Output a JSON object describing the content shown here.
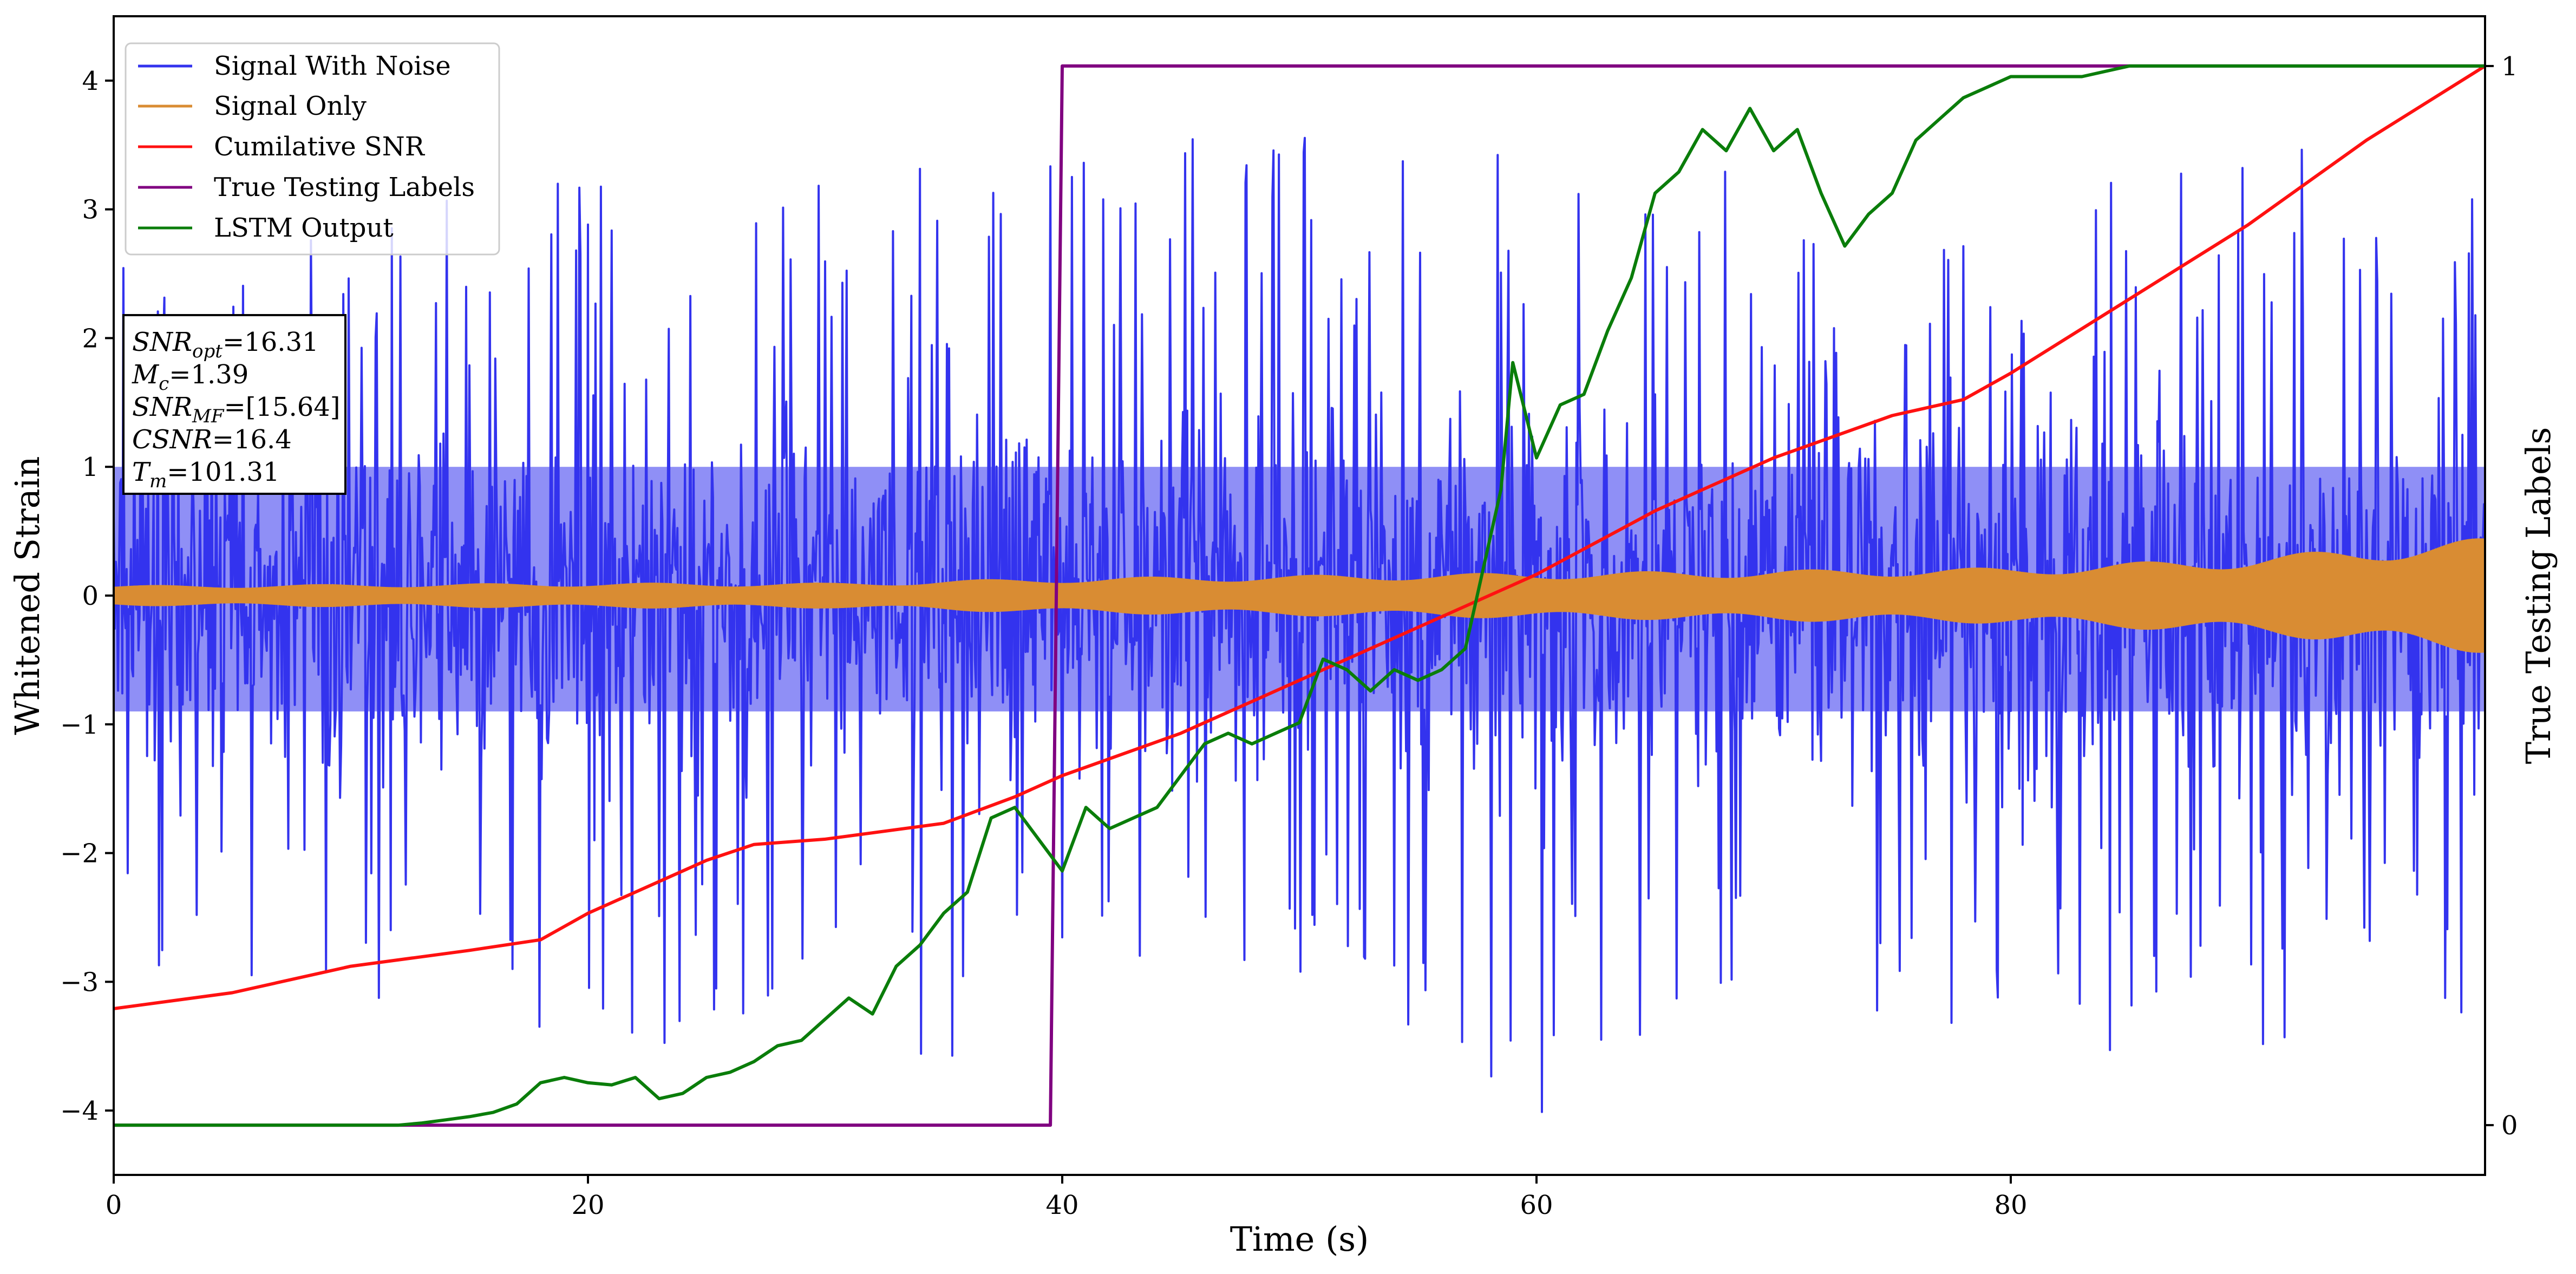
{
  "chart_data": {
    "type": "line",
    "title": "",
    "xlabel": "Time (s)",
    "ylabel": "Whitened Strain",
    "y2label": "True Testing Labels",
    "xlim": [
      0,
      100
    ],
    "ylim": [
      -4.5,
      4.5
    ],
    "y2lim": [
      -0.047,
      1.047
    ],
    "xticks": [
      0,
      20,
      40,
      60,
      80
    ],
    "yticks": [
      -4,
      -3,
      -2,
      -1,
      0,
      1,
      2,
      3,
      4
    ],
    "y2ticks": [
      0,
      1
    ],
    "legend_position": "top-left",
    "grid": false,
    "colors": {
      "signal_with_noise": "#3333ee",
      "signal_only": "#d98c33",
      "cumulative_snr": "#ff1111",
      "true_labels": "#800080",
      "lstm_output": "#0a7d0a"
    },
    "series": [
      {
        "name": "Signal With Noise",
        "axis": "left",
        "style": "noise-band",
        "envelope_x": [
          0,
          10,
          20,
          30,
          40,
          50,
          60,
          70,
          80,
          90,
          100
        ],
        "envelope_low": [
          -2.8,
          -3.2,
          -3.6,
          -3.4,
          -3.9,
          -3.3,
          -4.1,
          -3.5,
          -3.5,
          -3.6,
          -3.2
        ],
        "envelope_high": [
          3.0,
          2.9,
          3.5,
          3.3,
          3.7,
          3.6,
          3.8,
          3.2,
          3.3,
          3.5,
          3.6
        ],
        "core_band": [
          -0.9,
          1.0
        ]
      },
      {
        "name": "Signal Only",
        "axis": "left",
        "style": "amplitude-band",
        "x": [
          0,
          10,
          20,
          30,
          40,
          50,
          60,
          70,
          80,
          90,
          100
        ],
        "amplitude": [
          0.08,
          0.09,
          0.1,
          0.1,
          0.14,
          0.16,
          0.18,
          0.2,
          0.22,
          0.3,
          0.45
        ]
      },
      {
        "name": "Cumilative SNR",
        "axis": "right",
        "x": [
          0,
          5,
          10,
          15,
          18,
          20,
          25,
          27,
          30,
          35,
          38,
          40,
          45,
          50,
          55,
          60,
          65,
          70,
          75,
          78,
          80,
          85,
          90,
          95,
          100
        ],
        "y": [
          0.11,
          0.125,
          0.15,
          0.165,
          0.175,
          0.2,
          0.25,
          0.265,
          0.27,
          0.285,
          0.31,
          0.33,
          0.37,
          0.42,
          0.47,
          0.52,
          0.58,
          0.63,
          0.67,
          0.685,
          0.71,
          0.78,
          0.85,
          0.93,
          1.0
        ]
      },
      {
        "name": "True Testing Labels",
        "axis": "right",
        "x": [
          0,
          39.5,
          40,
          100
        ],
        "y": [
          0,
          0,
          1,
          1
        ]
      },
      {
        "name": "LSTM Output",
        "axis": "right",
        "x": [
          0,
          12,
          13,
          14,
          15,
          16,
          17,
          18,
          19,
          20,
          21,
          22,
          23,
          24,
          25,
          26,
          27,
          28,
          29,
          30,
          31,
          32,
          33,
          34,
          35,
          36,
          37,
          38,
          39,
          40,
          41,
          42,
          43,
          44,
          45,
          46,
          47,
          48,
          49,
          50,
          51,
          52,
          53,
          54,
          55,
          56,
          57,
          57.5,
          58,
          58.5,
          59,
          60,
          61,
          62,
          63,
          64,
          65,
          66,
          67,
          68,
          69,
          70,
          71,
          72,
          73,
          74,
          75,
          76,
          77,
          78,
          79,
          80,
          82,
          83,
          85,
          100
        ],
        "y": [
          0,
          0,
          0.002,
          0.005,
          0.008,
          0.012,
          0.02,
          0.04,
          0.045,
          0.04,
          0.038,
          0.045,
          0.025,
          0.03,
          0.045,
          0.05,
          0.06,
          0.075,
          0.08,
          0.1,
          0.12,
          0.105,
          0.15,
          0.17,
          0.2,
          0.22,
          0.29,
          0.3,
          0.27,
          0.24,
          0.3,
          0.28,
          0.29,
          0.3,
          0.33,
          0.36,
          0.37,
          0.36,
          0.37,
          0.38,
          0.44,
          0.43,
          0.41,
          0.43,
          0.42,
          0.43,
          0.45,
          0.5,
          0.55,
          0.6,
          0.72,
          0.63,
          0.68,
          0.69,
          0.75,
          0.8,
          0.88,
          0.9,
          0.94,
          0.92,
          0.96,
          0.92,
          0.94,
          0.88,
          0.83,
          0.86,
          0.88,
          0.93,
          0.95,
          0.97,
          0.98,
          0.99,
          0.99,
          0.99,
          1.0,
          1.0
        ]
      }
    ],
    "annotation": [
      {
        "base": "SNR",
        "sub": "opt",
        "value": "=16.31"
      },
      {
        "base": "M",
        "sub": "c",
        "value": "=1.39"
      },
      {
        "base": "SNR",
        "sub": "MF",
        "value": "=[15.64]"
      },
      {
        "base": "CSNR",
        "sub": "",
        "value": "=16.4"
      },
      {
        "base": "T",
        "sub": "m",
        "value": "=101.31"
      }
    ]
  }
}
